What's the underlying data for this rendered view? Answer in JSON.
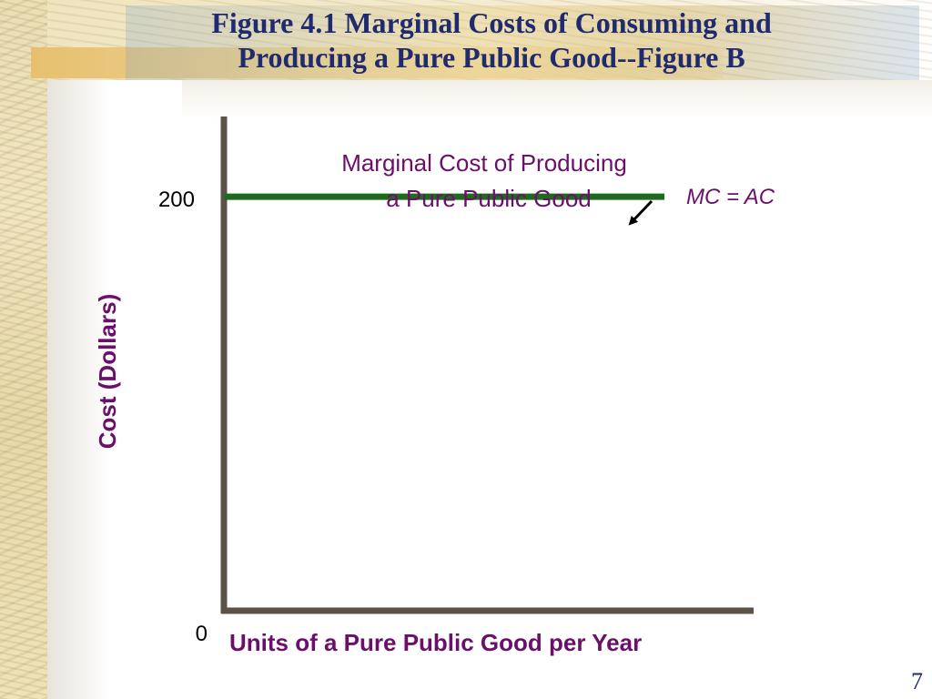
{
  "slide": {
    "title_line1": "Figure 4.1 Marginal Costs of Consuming and",
    "title_line2": "Producing a Pure Public Good--Figure B",
    "page_number": "7"
  },
  "colors": {
    "title": "#1f2b6e",
    "text_purple": "#6b0f6b",
    "axis": "#5b5248",
    "series_line": "#1e6b1e"
  },
  "chart_data": {
    "type": "line",
    "title": "",
    "xlabel": "Units of a Pure Public Good per Year",
    "ylabel": "Cost (Dollars)",
    "ylim": [
      0,
      237
    ],
    "xlim": [
      0,
      1
    ],
    "x_ticks": [],
    "y_ticks": [
      {
        "value": 0,
        "label": "0"
      },
      {
        "value": 200,
        "label": "200"
      }
    ],
    "grid": false,
    "series": [
      {
        "name": "MC = AC",
        "x": [
          0,
          1
        ],
        "y": [
          200,
          200
        ]
      }
    ],
    "annotations": [
      {
        "line1": "Marginal Cost of Producing",
        "line2": "a Pure Public Good"
      }
    ]
  }
}
